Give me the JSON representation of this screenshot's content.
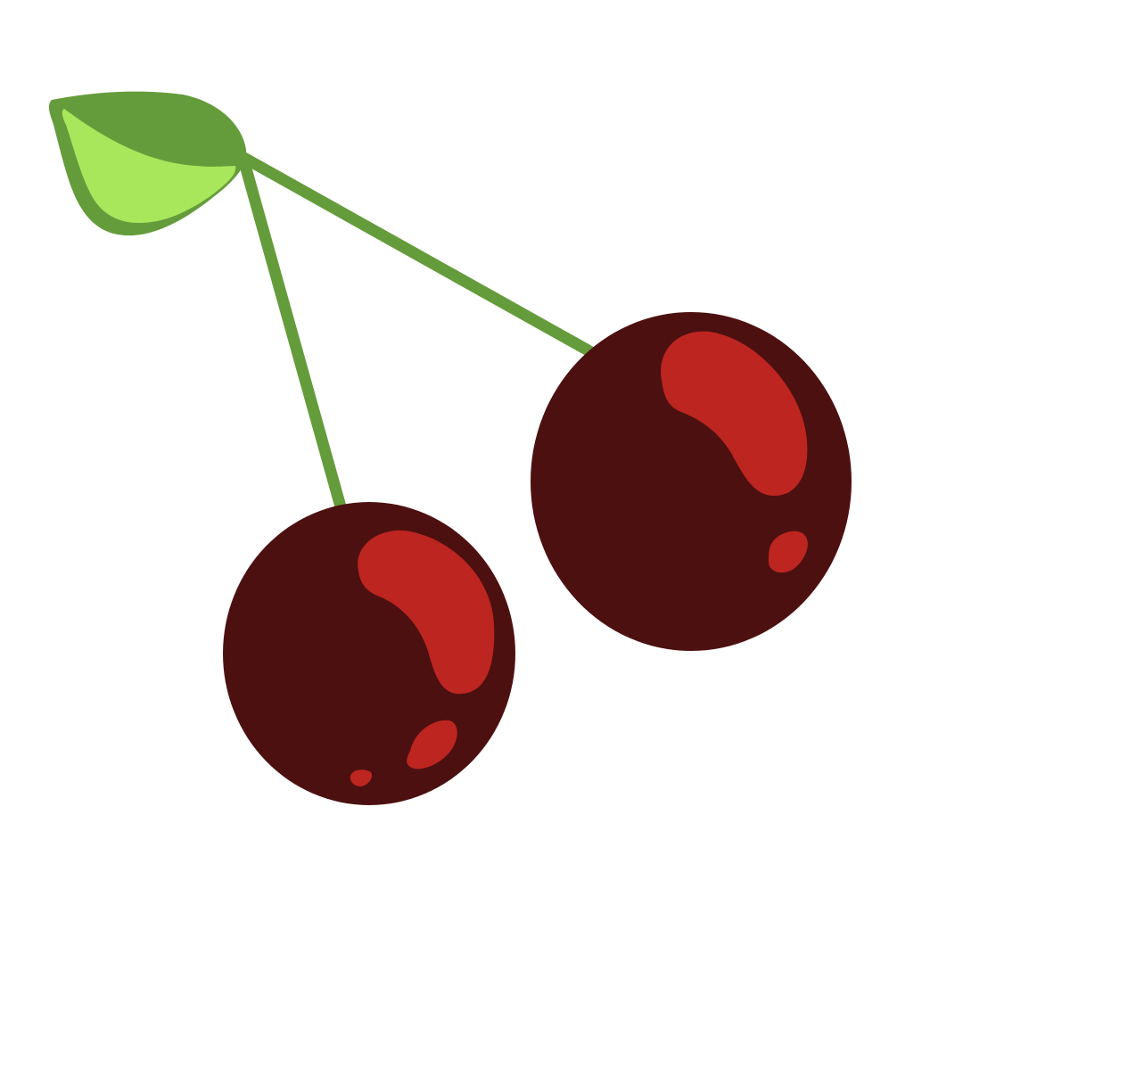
{
  "illustration": {
    "subject": "cherries",
    "colors": {
      "background": "#ffffff",
      "stem": "#659c3b",
      "leaf_dark": "#659c3b",
      "leaf_light": "#a8e65c",
      "cherry_body": "#4d1010",
      "cherry_highlight": "#bd2520"
    },
    "icons": [
      "leaf-icon",
      "stem-icon",
      "cherry-icon"
    ]
  }
}
